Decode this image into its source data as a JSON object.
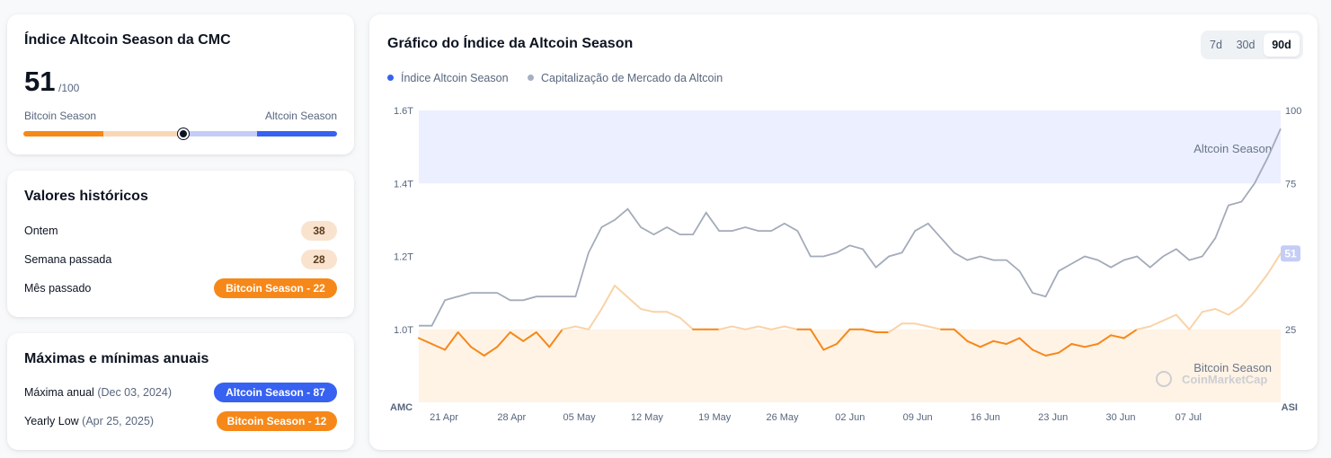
{
  "index_card": {
    "title": "Índice Altcoin Season da CMC",
    "value": "51",
    "of": "/100",
    "left_label": "Bitcoin Season",
    "right_label": "Altcoin Season",
    "position": 51,
    "colors": {
      "bitcoin": "#f68819",
      "bitcoin_light": "#f9d7b6",
      "altcoin_light": "#c4cdf6",
      "altcoin": "#3761f0"
    }
  },
  "history": {
    "title": "Valores históricos",
    "rows": [
      {
        "label": "Ontem",
        "value": "38"
      },
      {
        "label": "Semana passada",
        "value": "28"
      },
      {
        "label": "Mês passado",
        "value": "Bitcoin Season - 22"
      }
    ]
  },
  "yearly": {
    "title": "Máximas e mínimas anuais",
    "rows": [
      {
        "label": "Máxima anual",
        "date": "(Dec 03, 2024)",
        "value": "Altcoin Season - 87"
      },
      {
        "label": "Yearly Low",
        "date": "(Apr 25, 2025)",
        "value": "Bitcoin Season - 12"
      }
    ]
  },
  "chart": {
    "title": "Gráfico do Índice da Altcoin Season",
    "ranges": [
      "7d",
      "30d",
      "90d"
    ],
    "active_range": "90d",
    "legend": [
      {
        "label": "Índice Altcoin Season",
        "color": "#3761f0"
      },
      {
        "label": "Capitalização de Mercado da Altcoin",
        "color": "#a6b0c3"
      }
    ],
    "left_axis_label": "AMC",
    "right_axis_label": "ASI",
    "altcoin_zone_label": "Altcoin Season",
    "bitcoin_zone_label": "Bitcoin Season",
    "watermark": "CoinMarketCap",
    "current_badge": "51"
  },
  "chart_data": {
    "type": "line",
    "x_ticks": [
      "21 Apr",
      "28 Apr",
      "05 May",
      "12 May",
      "19 May",
      "26 May",
      "02 Jun",
      "09 Jun",
      "16 Jun",
      "23 Jun",
      "30 Jun",
      "07 Jul"
    ],
    "left_axis": {
      "ticks": [
        "1.0T",
        "1.2T",
        "1.4T",
        "1.6T"
      ],
      "tick_values": [
        1.0,
        1.2,
        1.4,
        1.6
      ],
      "ylim": [
        0.8,
        1.6
      ]
    },
    "right_axis": {
      "ticks": [
        "25",
        "50",
        "75",
        "100"
      ],
      "tick_values": [
        25,
        50,
        75,
        100
      ],
      "ylim": [
        0,
        100
      ]
    },
    "zones": {
      "bitcoin_season_max": 25,
      "altcoin_season_min": 75
    },
    "series": [
      {
        "name": "Índice Altcoin Season",
        "axis": "right",
        "values": [
          22,
          20,
          18,
          24,
          19,
          16,
          19,
          24,
          21,
          24,
          19,
          25,
          26,
          25,
          32,
          40,
          36,
          32,
          31,
          31,
          29,
          25,
          25,
          25,
          26,
          25,
          26,
          25,
          26,
          25,
          25,
          18,
          20,
          25,
          25,
          24,
          24,
          27,
          27,
          26,
          25,
          25,
          21,
          19,
          21,
          20,
          22,
          18,
          16,
          17,
          20,
          19,
          20,
          23,
          22,
          25,
          26,
          28,
          30,
          25,
          31,
          32,
          30,
          33,
          38,
          44,
          51
        ]
      },
      {
        "name": "Capitalização de Mercado da Altcoin",
        "axis": "left",
        "values": [
          1.01,
          1.01,
          1.08,
          1.09,
          1.1,
          1.1,
          1.1,
          1.08,
          1.08,
          1.09,
          1.09,
          1.09,
          1.09,
          1.21,
          1.28,
          1.3,
          1.33,
          1.28,
          1.26,
          1.28,
          1.26,
          1.26,
          1.32,
          1.27,
          1.27,
          1.28,
          1.27,
          1.27,
          1.29,
          1.27,
          1.2,
          1.2,
          1.21,
          1.23,
          1.22,
          1.17,
          1.2,
          1.21,
          1.27,
          1.29,
          1.25,
          1.21,
          1.19,
          1.2,
          1.19,
          1.19,
          1.16,
          1.1,
          1.09,
          1.16,
          1.18,
          1.2,
          1.19,
          1.17,
          1.19,
          1.2,
          1.17,
          1.2,
          1.22,
          1.19,
          1.2,
          1.25,
          1.34,
          1.35,
          1.4,
          1.47,
          1.55
        ]
      }
    ]
  }
}
